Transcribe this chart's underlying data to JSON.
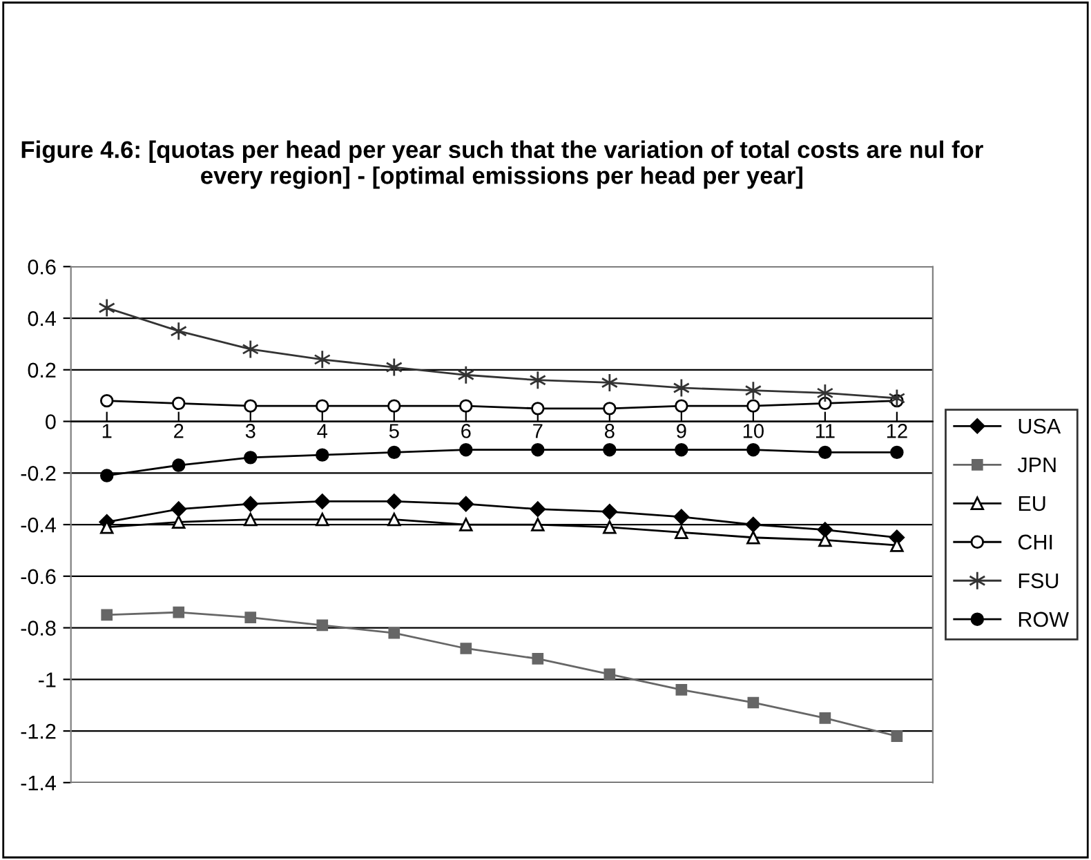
{
  "chart_data": {
    "type": "line",
    "title": "Figure 4.6: [quotas per head per year such that the variation of total costs are nul for every region] - [optimal emissions per head per year]",
    "categories": [
      "1",
      "2",
      "3",
      "4",
      "5",
      "6",
      "7",
      "8",
      "9",
      "10",
      "11",
      "12"
    ],
    "series": [
      {
        "name": "USA",
        "color": "#000000",
        "marker": "diamond",
        "values": [
          -0.39,
          -0.34,
          -0.32,
          -0.31,
          -0.31,
          -0.32,
          -0.34,
          -0.35,
          -0.37,
          -0.4,
          -0.42,
          -0.45
        ]
      },
      {
        "name": "JPN",
        "color": "#666666",
        "marker": "square",
        "values": [
          -0.75,
          -0.74,
          -0.76,
          -0.79,
          -0.82,
          -0.88,
          -0.92,
          -0.98,
          -1.04,
          -1.09,
          -1.15,
          -1.22
        ]
      },
      {
        "name": "EU",
        "color": "#000000",
        "marker": "triangle",
        "values": [
          -0.41,
          -0.39,
          -0.38,
          -0.38,
          -0.38,
          -0.4,
          -0.4,
          -0.41,
          -0.43,
          -0.45,
          -0.46,
          -0.48
        ]
      },
      {
        "name": "CHI",
        "color": "#000000",
        "marker": "circle",
        "values": [
          0.08,
          0.07,
          0.06,
          0.06,
          0.06,
          0.06,
          0.05,
          0.05,
          0.06,
          0.06,
          0.07,
          0.08
        ]
      },
      {
        "name": "FSU",
        "color": "#333333",
        "marker": "cross",
        "values": [
          0.44,
          0.35,
          0.28,
          0.24,
          0.21,
          0.18,
          0.16,
          0.15,
          0.13,
          0.12,
          0.11,
          0.09
        ]
      },
      {
        "name": "ROW",
        "color": "#000000",
        "marker": "circle",
        "values": [
          -0.21,
          -0.17,
          -0.14,
          -0.13,
          -0.12,
          -0.11,
          -0.11,
          -0.11,
          -0.11,
          -0.11,
          -0.12,
          -0.12
        ]
      }
    ],
    "ylim": [
      -1.4,
      0.6
    ],
    "yticks": [
      0.6,
      0.4,
      0.2,
      0,
      -0.2,
      -0.4,
      -0.6,
      -0.8,
      -1,
      -1.2,
      -1.4
    ],
    "grid": "y",
    "legend": "right"
  }
}
